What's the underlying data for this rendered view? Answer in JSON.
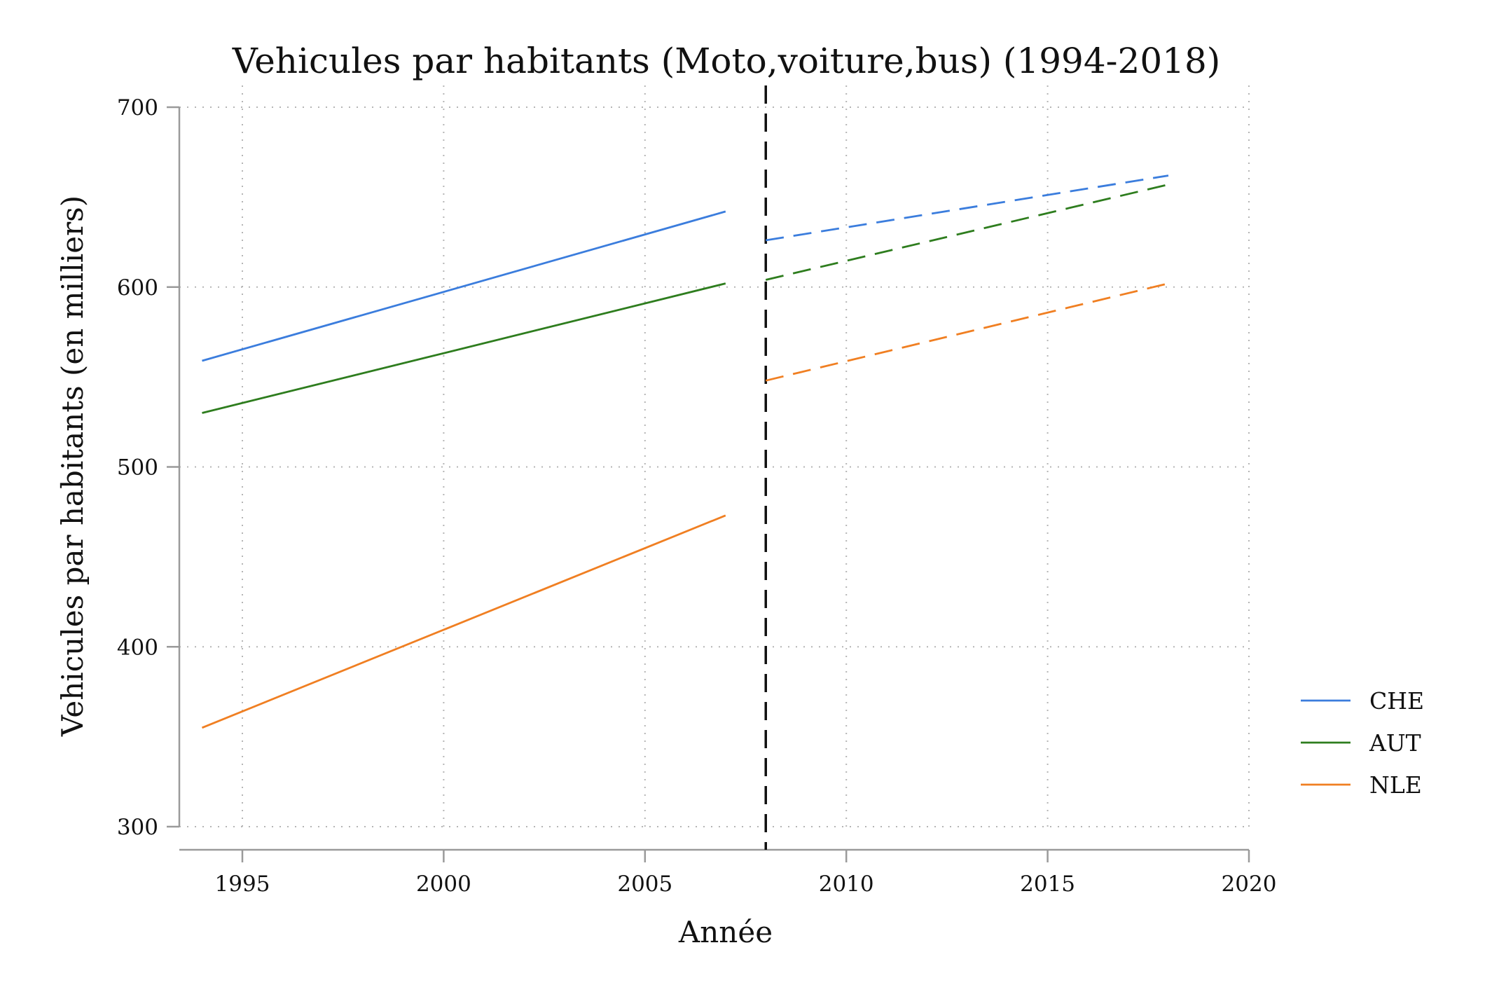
{
  "chart_data": {
    "type": "line",
    "title": "Vehicules par habitants (Moto,voiture,bus) (1994-2018)",
    "xlabel": "Année",
    "ylabel": "Vehicules par habitants (en milliers)",
    "xlim": [
      1994,
      2020
    ],
    "ylim": [
      300,
      700
    ],
    "xticks": [
      1995,
      2000,
      2005,
      2010,
      2015,
      2020
    ],
    "yticks": [
      300,
      400,
      500,
      600,
      700
    ],
    "grid": true,
    "legend_position": "right",
    "reference_line": {
      "x": 2008,
      "style": "dashed",
      "color": "#111111"
    },
    "series": [
      {
        "name": "CHE",
        "color": "#3b7ddd",
        "segments": [
          {
            "style": "solid",
            "x": [
              1994,
              2007
            ],
            "y": [
              559,
              642
            ]
          },
          {
            "style": "dashed",
            "x": [
              2008,
              2018
            ],
            "y": [
              626,
              662
            ]
          }
        ]
      },
      {
        "name": "AUT",
        "color": "#2e7d1e",
        "segments": [
          {
            "style": "solid",
            "x": [
              1994,
              2007
            ],
            "y": [
              530,
              602
            ]
          },
          {
            "style": "dashed",
            "x": [
              2008,
              2018
            ],
            "y": [
              604,
              657
            ]
          }
        ]
      },
      {
        "name": "NLE",
        "color": "#f07f22",
        "segments": [
          {
            "style": "solid",
            "x": [
              1994,
              2007
            ],
            "y": [
              355,
              473
            ]
          },
          {
            "style": "dashed",
            "x": [
              2008,
              2018
            ],
            "y": [
              548,
              602
            ]
          }
        ]
      }
    ]
  }
}
